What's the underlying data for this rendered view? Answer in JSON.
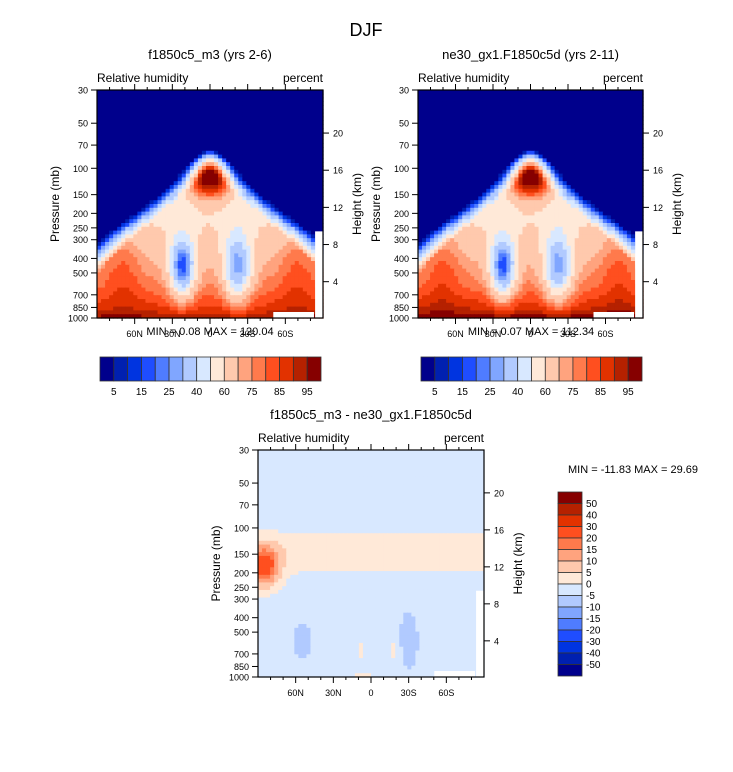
{
  "figure": {
    "title": "DJF"
  },
  "chart_data": [
    {
      "type": "heatmap",
      "panel": "top-left",
      "title": "f1850c5_m3 (yrs 2-6)",
      "left_label": "Relative humidity",
      "right_label": "percent",
      "ylabel": "Pressure (mb)",
      "ylabel_right": "Height (km)",
      "xlabel": "",
      "x_ticks": [
        "60N",
        "30N",
        "0",
        "30S",
        "60S"
      ],
      "x_range": [
        "90N",
        "90S"
      ],
      "y_ticks": [
        "30",
        "50",
        "70",
        "100",
        "150",
        "200",
        "250",
        "300",
        "400",
        "500",
        "700",
        "850",
        "1000"
      ],
      "y_ticks_right": [
        "20",
        "16",
        "12",
        "8",
        "4"
      ],
      "ylim": [
        1000,
        30
      ],
      "min_label": "MIN =",
      "min_value": "0.08",
      "max_label": "MAX =",
      "max_value": "120.04",
      "colorbar": {
        "orientation": "horizontal",
        "levels": [
          "5",
          "15",
          "25",
          "40",
          "60",
          "75",
          "85",
          "95"
        ],
        "colors": [
          "#00008c",
          "#0020b0",
          "#0034e0",
          "#1f4dff",
          "#4f7cff",
          "#80a6ff",
          "#b1caff",
          "#d8e8ff",
          "#ffe9d8",
          "#ffc9ad",
          "#ffa37e",
          "#ff7a4c",
          "#ff4f1f",
          "#e23200",
          "#b52100",
          "#860000"
        ]
      },
      "description": "Relative humidity zonal-mean cross-section; dry (5-15%) stratosphere above ~150 mb at both poles, moist tropical tropopause near 100 mb (75-95%), dry subtropical minima (25-40%) near 30N and 30S at 400-700 mb, humid (75-95%) boundary layer below 850 mb."
    },
    {
      "type": "heatmap",
      "panel": "top-right",
      "title": "ne30_gx1.F1850c5d (yrs 2-11)",
      "left_label": "Relative humidity",
      "right_label": "percent",
      "ylabel": "Pressure (mb)",
      "ylabel_right": "Height (km)",
      "x_ticks": [
        "60N",
        "30N",
        "0",
        "30S",
        "60S"
      ],
      "y_ticks": [
        "30",
        "50",
        "70",
        "100",
        "150",
        "200",
        "250",
        "300",
        "400",
        "500",
        "700",
        "850",
        "1000"
      ],
      "y_ticks_right": [
        "20",
        "16",
        "12",
        "8",
        "4"
      ],
      "ylim": [
        1000,
        30
      ],
      "min_label": "MIN =",
      "min_value": "0.07",
      "max_label": "MAX =",
      "max_value": "112.34",
      "colorbar": {
        "orientation": "horizontal",
        "levels": [
          "5",
          "15",
          "25",
          "40",
          "60",
          "75",
          "85",
          "95"
        ],
        "colors": [
          "#00008c",
          "#0020b0",
          "#0034e0",
          "#1f4dff",
          "#4f7cff",
          "#80a6ff",
          "#b1caff",
          "#d8e8ff",
          "#ffe9d8",
          "#ffc9ad",
          "#ffa37e",
          "#ff7a4c",
          "#ff4f1f",
          "#e23200",
          "#b52100",
          "#860000"
        ]
      }
    },
    {
      "type": "heatmap",
      "panel": "bottom",
      "title": "f1850c5_m3 - ne30_gx1.F1850c5d",
      "left_label": "Relative humidity",
      "right_label": "percent",
      "ylabel": "Pressure (mb)",
      "ylabel_right": "Height (km)",
      "x_ticks": [
        "60N",
        "30N",
        "0",
        "30S",
        "60S"
      ],
      "y_ticks": [
        "30",
        "50",
        "70",
        "100",
        "150",
        "200",
        "250",
        "300",
        "400",
        "500",
        "700",
        "850",
        "1000"
      ],
      "y_ticks_right": [
        "20",
        "16",
        "12",
        "8",
        "4"
      ],
      "ylim": [
        1000,
        30
      ],
      "min_label": "MIN =",
      "min_value": "-11.83",
      "max_label": "MAX =",
      "max_value": "29.69",
      "colorbar": {
        "orientation": "vertical",
        "levels": [
          "50",
          "40",
          "30",
          "20",
          "15",
          "10",
          "5",
          "0",
          "-5",
          "-10",
          "-15",
          "-20",
          "-30",
          "-40",
          "-50"
        ],
        "colors": [
          "#860000",
          "#b52100",
          "#e23200",
          "#ff4f1f",
          "#ff7a4c",
          "#ffa37e",
          "#ffc9ad",
          "#ffe9d8",
          "#d8e8ff",
          "#b1caff",
          "#80a6ff",
          "#4f7cff",
          "#1f4dff",
          "#0034e0",
          "#0020b0",
          "#00008c"
        ]
      },
      "description": "Difference field mostly -5 to 0 below 300 mb, positive 0-20 in upper troposphere near 150-200 mb at 90N, small 0-5 patches near equator at 500-700 mb and near surface."
    }
  ]
}
